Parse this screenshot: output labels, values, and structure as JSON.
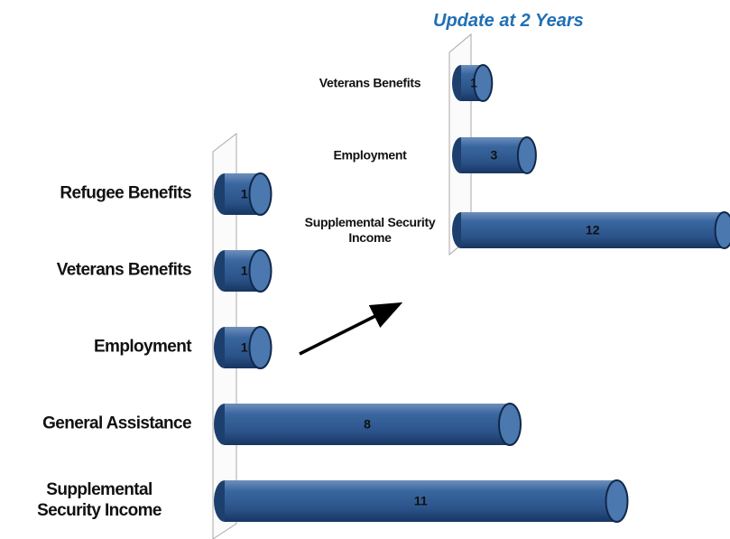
{
  "chart_data": [
    {
      "type": "bar",
      "categories": [
        "Refugee Benefits",
        "Veterans Benefits",
        "Employment",
        "General Assistance",
        "Supplemental Security Income"
      ],
      "values": [
        1,
        1,
        1,
        8,
        11
      ],
      "color": "#2c5a93"
    },
    {
      "type": "bar",
      "title": "Update at 2 Years",
      "categories": [
        "Veterans Benefits",
        "Employment",
        "Supplemental Security Income"
      ],
      "values": [
        1,
        3,
        12
      ],
      "color": "#2c5a93"
    }
  ]
}
